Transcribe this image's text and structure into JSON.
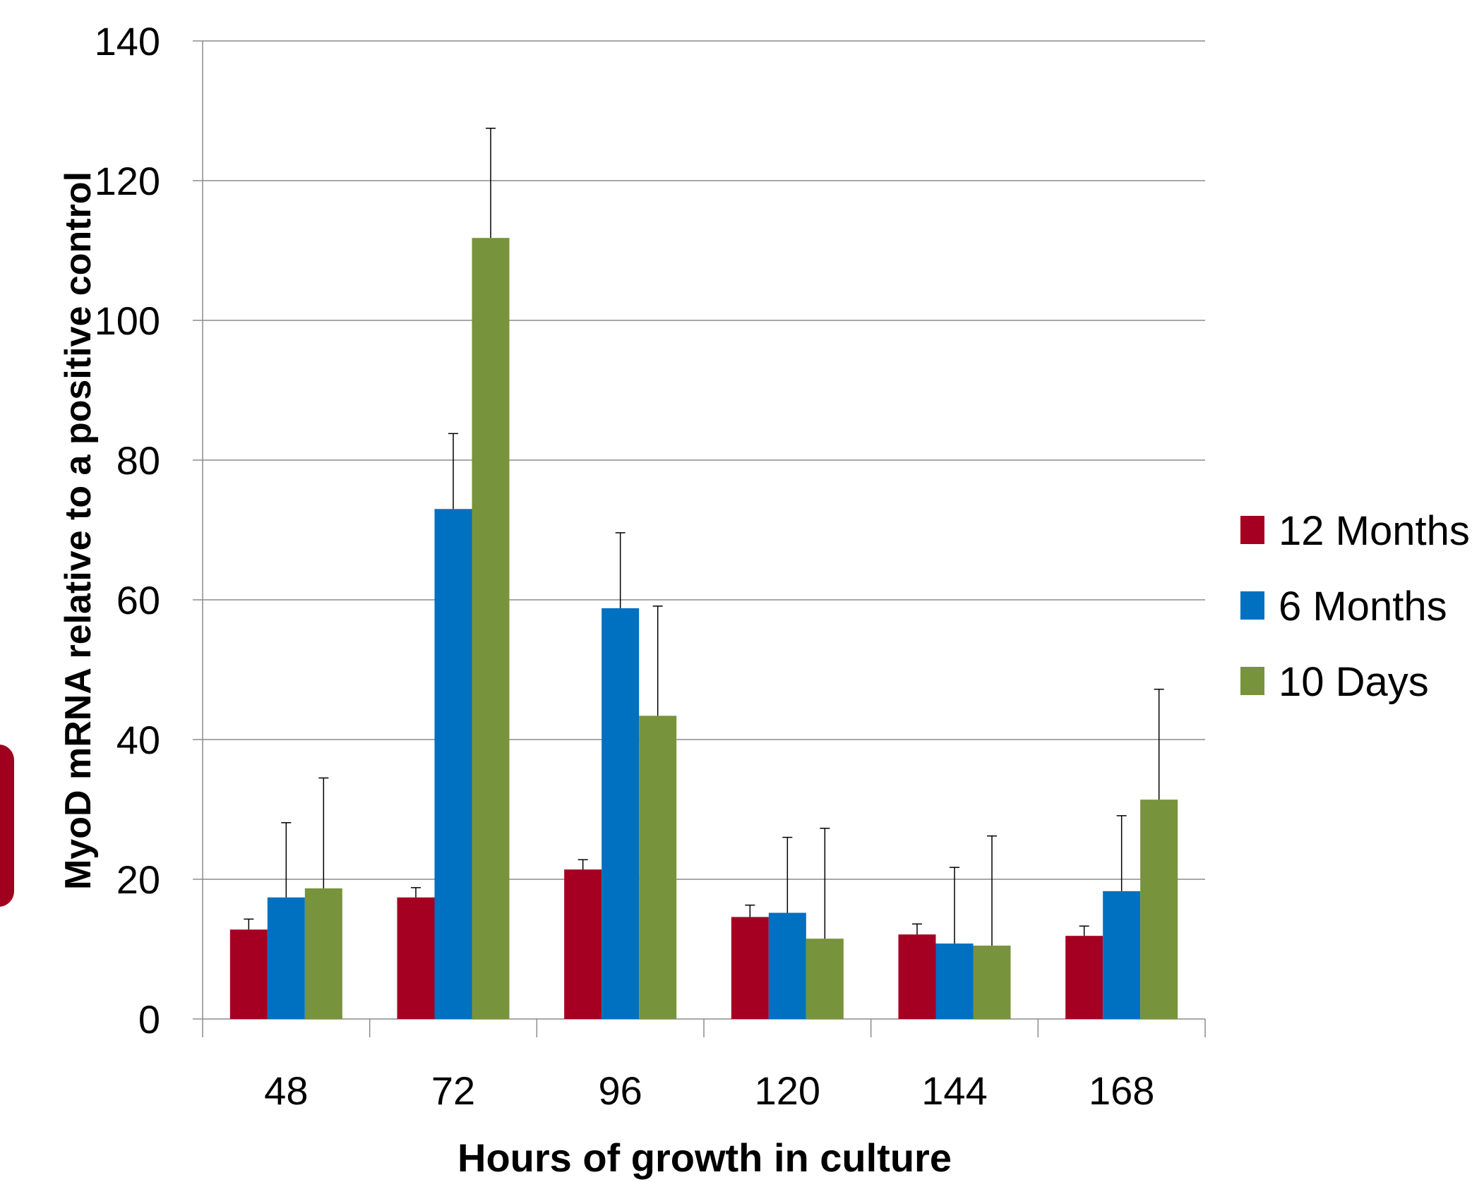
{
  "chart_data": {
    "type": "bar",
    "title": "",
    "xlabel": "Hours of growth in culture",
    "ylabel": "MyoD mRNA relative to a positive control",
    "categories": [
      "48",
      "72",
      "96",
      "120",
      "144",
      "168"
    ],
    "ylim": [
      0,
      140
    ],
    "yticks": [
      "0",
      "20",
      "40",
      "60",
      "80",
      "100",
      "120",
      "140"
    ],
    "grid": true,
    "legend_position": "right",
    "series": [
      {
        "name": "12 Months",
        "color": "#a50021",
        "values": [
          12.8,
          17.4,
          21.4,
          14.6,
          12.1,
          11.9
        ],
        "error_upper": [
          14.3,
          18.8,
          22.8,
          16.3,
          13.6,
          13.3
        ]
      },
      {
        "name": "6 Months",
        "color": "#0070c0",
        "values": [
          17.4,
          73.0,
          58.8,
          15.2,
          10.8,
          18.3
        ],
        "error_upper": [
          28.1,
          83.8,
          69.6,
          26.0,
          21.7,
          29.1
        ]
      },
      {
        "name": "10 Days",
        "color": "#77933c",
        "values": [
          18.7,
          111.8,
          43.4,
          11.5,
          10.5,
          31.4
        ],
        "error_upper": [
          34.5,
          127.5,
          59.1,
          27.3,
          26.2,
          47.2
        ]
      }
    ]
  },
  "side_tab": {
    "color": "#a0001e"
  }
}
